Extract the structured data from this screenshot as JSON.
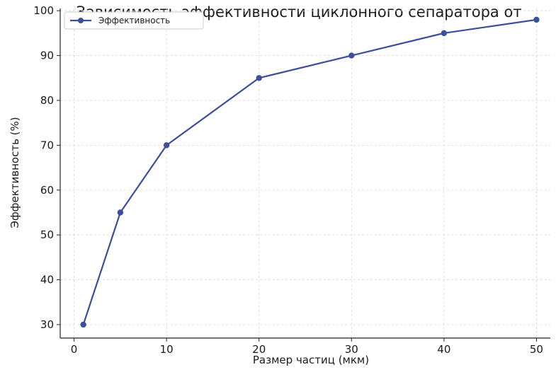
{
  "chart_data": {
    "type": "line",
    "title": "Зависимость эффективности циклонного сепаратора от",
    "xlabel": "Размер частиц (мкм)",
    "ylabel": "Эффективность (%)",
    "x": [
      1,
      5,
      10,
      20,
      30,
      40,
      50
    ],
    "series": [
      {
        "name": "Эффективность",
        "values": [
          30,
          55,
          70,
          85,
          90,
          95,
          98
        ],
        "color": "#3b4f9a",
        "marker": "circle"
      }
    ],
    "xlim": [
      -1.5,
      51.5
    ],
    "ylim": [
      27,
      100.5
    ],
    "xticks": [
      0,
      10,
      20,
      30,
      40,
      50
    ],
    "yticks": [
      30,
      40,
      50,
      60,
      70,
      80,
      90,
      100
    ],
    "grid": true,
    "legend_position": "top-left"
  }
}
